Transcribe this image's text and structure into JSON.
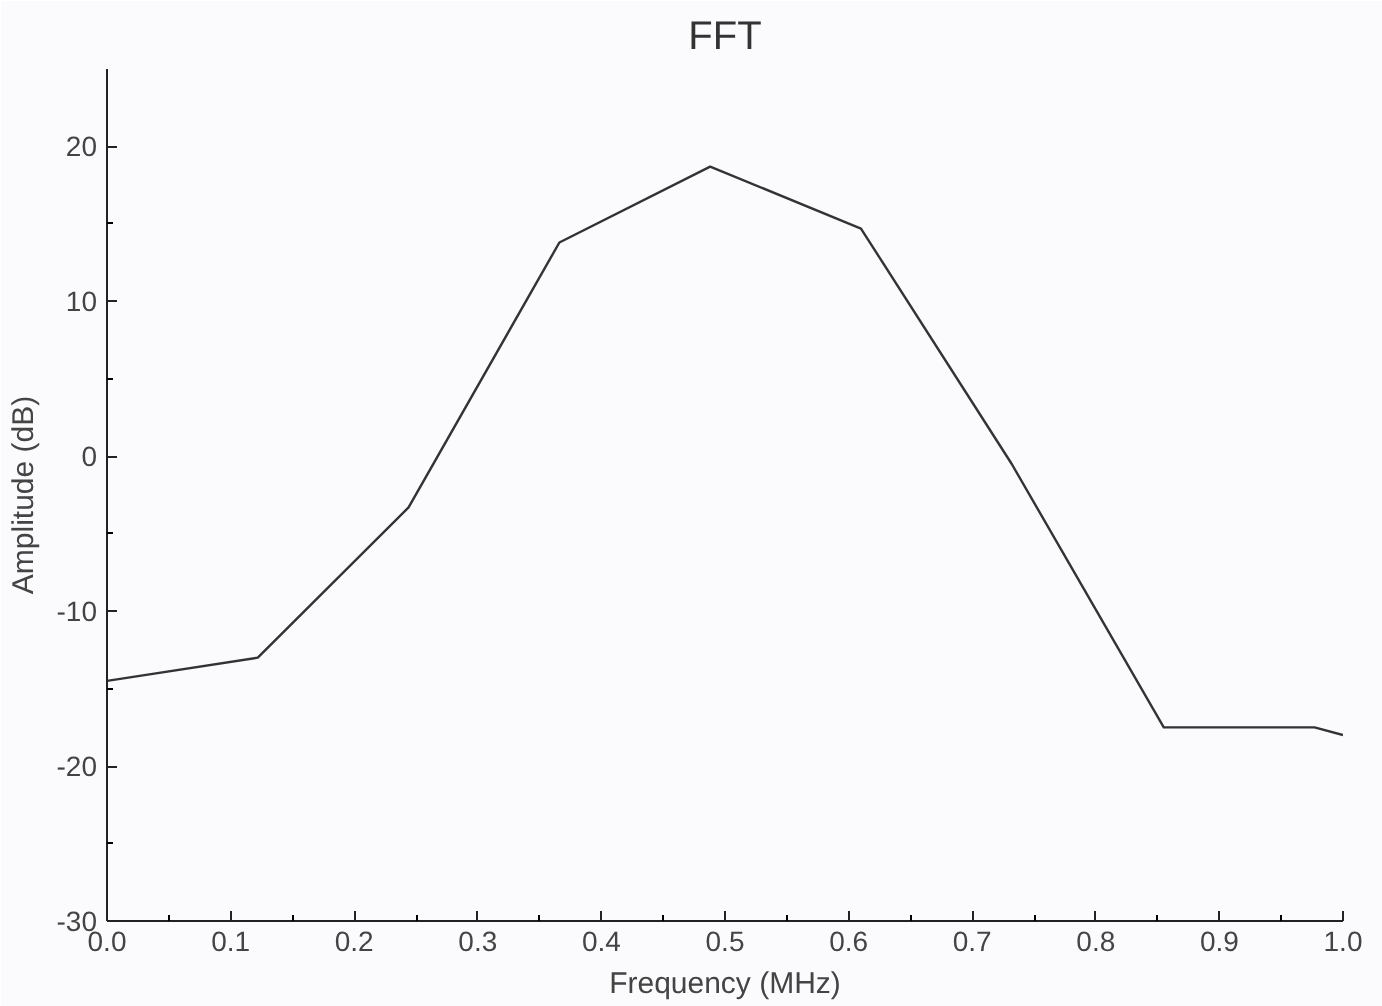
{
  "chart_data": {
    "type": "line",
    "title": "FFT",
    "xlabel": "Frequency (MHz)",
    "ylabel": "Amplitude (dB)",
    "x": [
      0.0,
      0.122,
      0.244,
      0.366,
      0.488,
      0.61,
      0.732,
      0.855,
      0.977,
      1.0
    ],
    "series": [
      {
        "color": "#333333",
        "values": [
          -14.5,
          -13.0,
          -3.3,
          13.8,
          18.7,
          14.7,
          -0.5,
          -17.5,
          -17.5,
          -18.0
        ]
      }
    ],
    "xlim": [
      0.0,
      1.0
    ],
    "xticks": [
      {
        "value": 0,
        "label": "0.0"
      },
      0.1,
      0.2,
      0.3,
      0.4,
      0.5,
      0.6,
      0.7,
      0.8,
      0.9,
      {
        "value": 1,
        "label": "1.0"
      }
    ],
    "ylim": [
      -30,
      25
    ],
    "yticks": [
      -30,
      -20,
      -10,
      0,
      10,
      20
    ],
    "grid": false,
    "marker": "none",
    "line_style": "solid"
  }
}
